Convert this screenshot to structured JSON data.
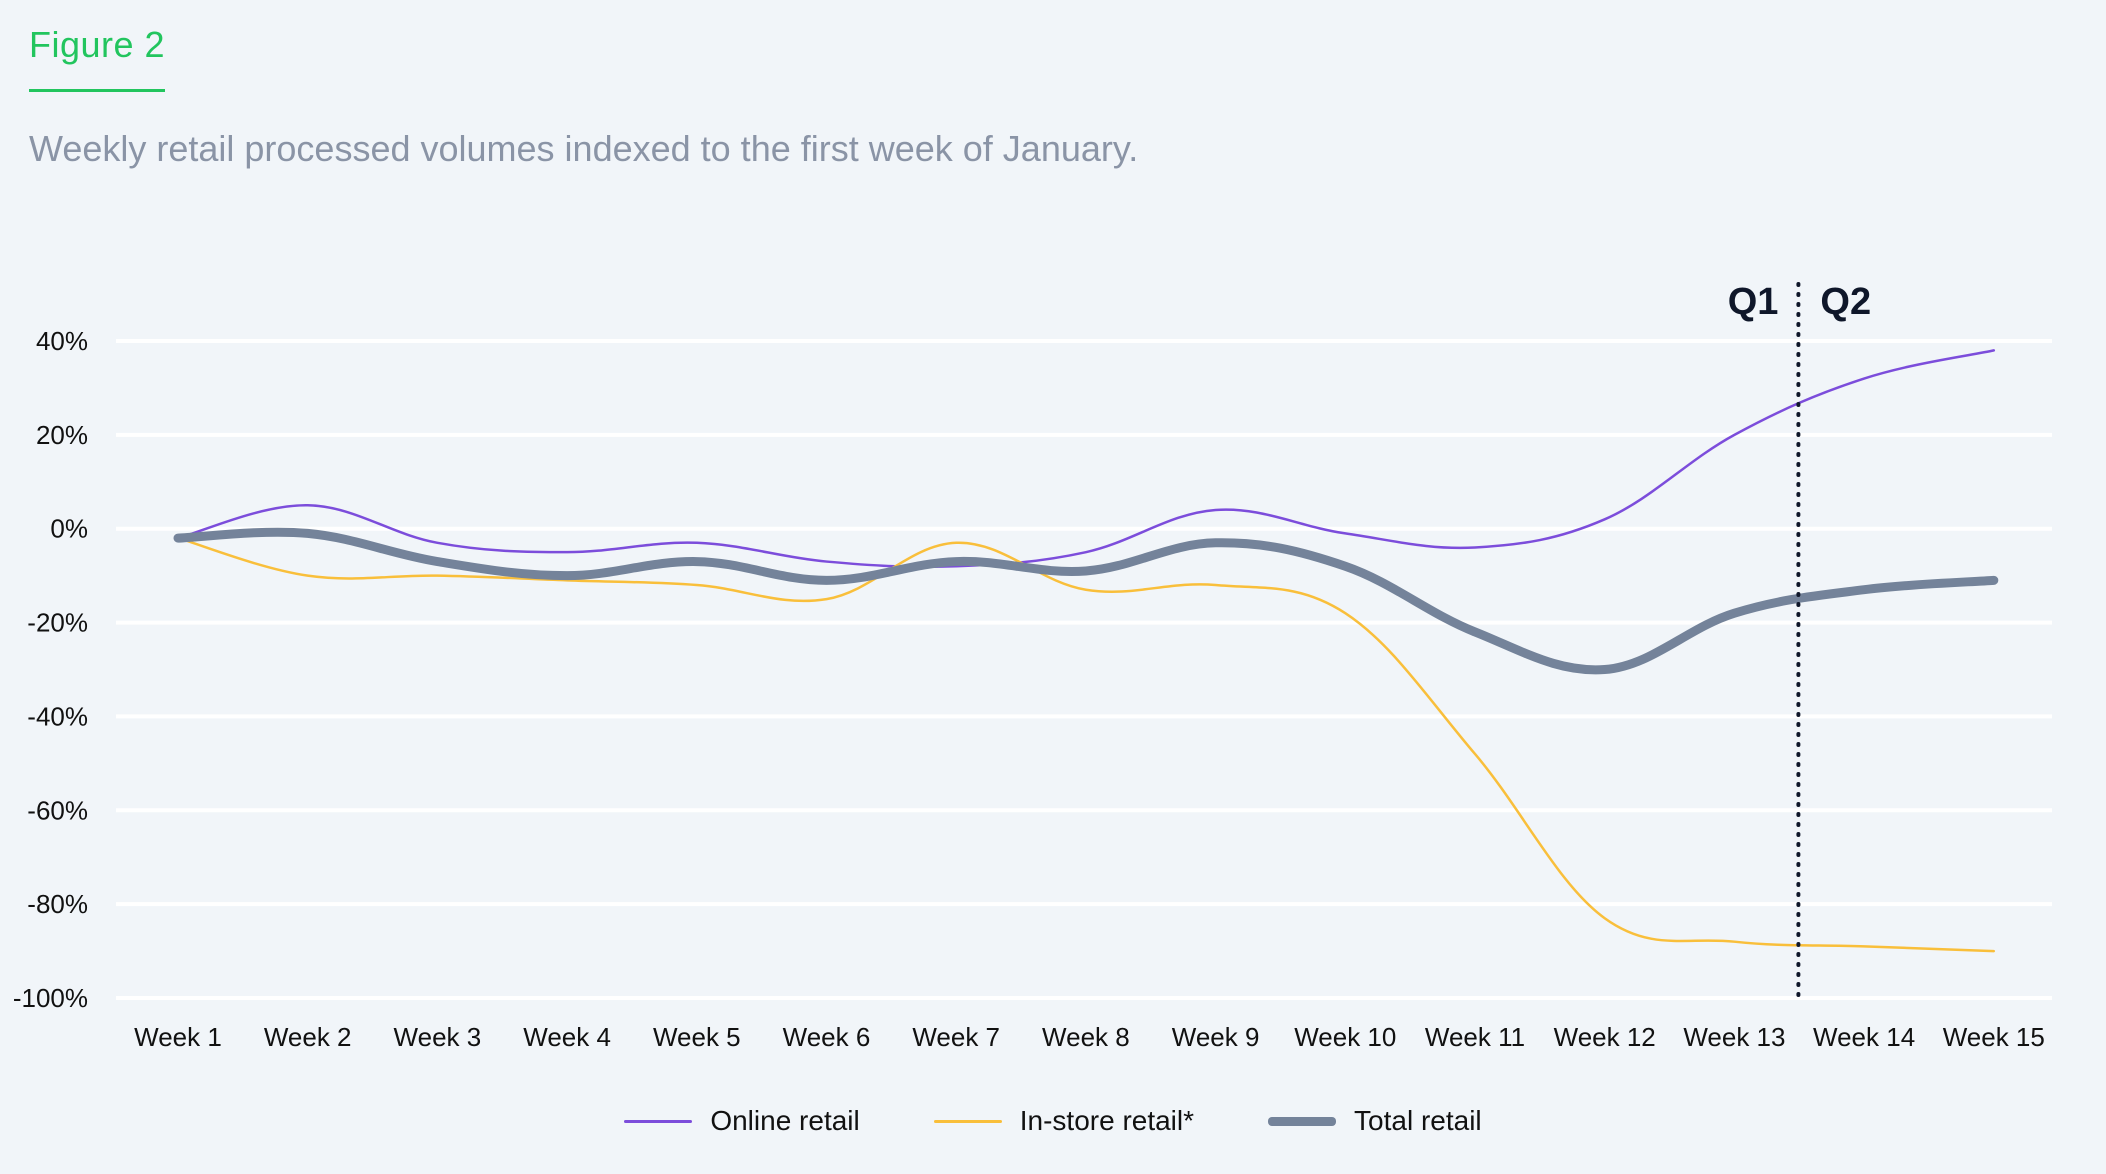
{
  "figure_label": "Figure 2",
  "subtitle": "Weekly retail processed volumes indexed to the first week of January.",
  "colors": {
    "accent": "#22c55e",
    "online": "#7c4ddb",
    "instore": "#f9bf3b",
    "total": "#74839a",
    "grid": "#ffffff",
    "divider": "#0f172a"
  },
  "chart_data": {
    "type": "line",
    "categories": [
      "Week 1",
      "Week 2",
      "Week 3",
      "Week 4",
      "Week 5",
      "Week 6",
      "Week 7",
      "Week 8",
      "Week 9",
      "Week 10",
      "Week 11",
      "Week 12",
      "Week 13",
      "Week 14",
      "Week 15"
    ],
    "y_ticks": [
      "40%",
      "20%",
      "0%",
      "-20%",
      "-40%",
      "-60%",
      "-80%",
      "-100%"
    ],
    "ylim": [
      -100,
      40
    ],
    "grid": true,
    "legend_position": "bottom-center",
    "series": [
      {
        "name": "Online retail",
        "color_key": "online",
        "values": [
          -2,
          5,
          -3,
          -5,
          -3,
          -7,
          -8,
          -5,
          4,
          -1,
          -4,
          2,
          20,
          32,
          38
        ]
      },
      {
        "name": "In-store retail*",
        "color_key": "instore",
        "values": [
          -2,
          -10,
          -10,
          -11,
          -12,
          -15,
          -3,
          -13,
          -12,
          -18,
          -48,
          -83,
          -88,
          -89,
          -90
        ]
      },
      {
        "name": "Total retail",
        "color_key": "total",
        "values": [
          -2,
          -1,
          -7,
          -10,
          -7,
          -11,
          -7,
          -9,
          -3,
          -8,
          -22,
          -30,
          -18,
          -13,
          -11
        ]
      }
    ],
    "annotations": {
      "divider_after": "Week 13",
      "left_label": "Q1",
      "right_label": "Q2"
    }
  }
}
